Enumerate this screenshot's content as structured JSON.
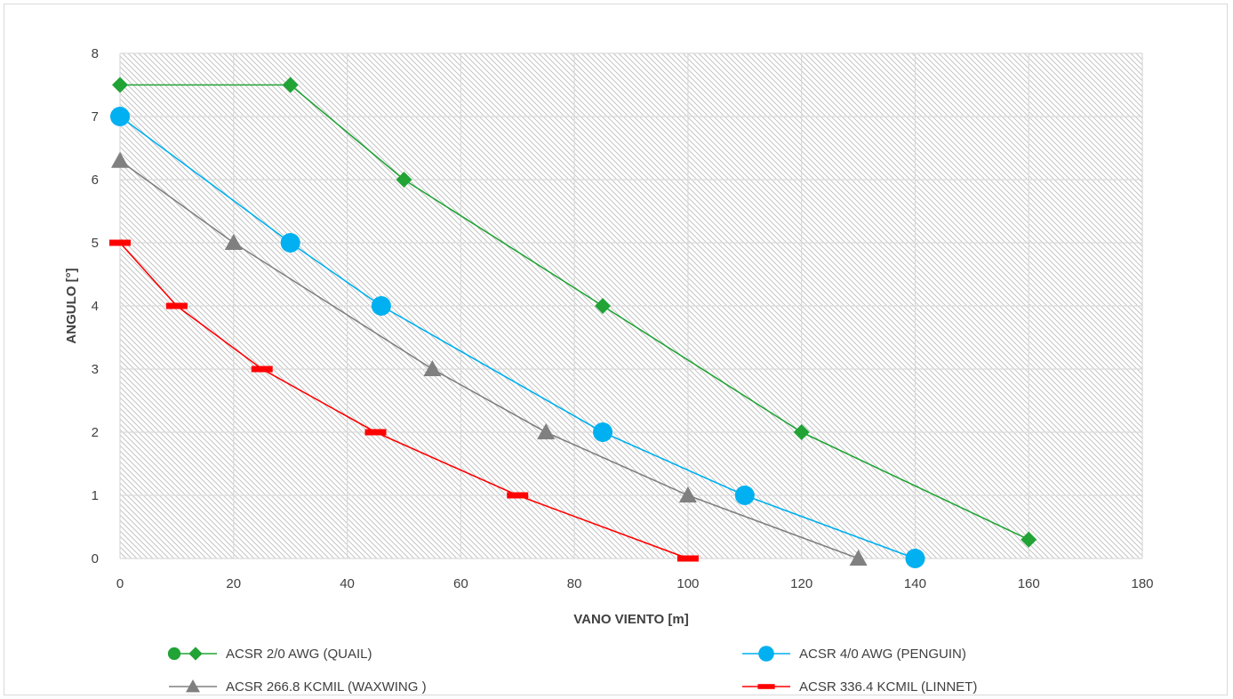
{
  "chart_data": {
    "type": "line",
    "title": "",
    "xlabel": "VANO VIENTO [m]",
    "ylabel": "ANGULO [°]",
    "xlim": [
      0,
      180
    ],
    "ylim": [
      0,
      8
    ],
    "xticks": [
      0,
      20,
      40,
      60,
      80,
      100,
      120,
      140,
      160,
      180
    ],
    "yticks": [
      0,
      1,
      2,
      3,
      4,
      5,
      6,
      7,
      8
    ],
    "grid": true,
    "legend_position": "bottom",
    "series": [
      {
        "name": "ACSR 2/0 AWG (QUAIL)",
        "color": "#21a336",
        "marker": "diamond",
        "points": [
          [
            0,
            7.5
          ],
          [
            30,
            7.5
          ],
          [
            50,
            6
          ],
          [
            85,
            4
          ],
          [
            120,
            2
          ],
          [
            160,
            0.3
          ]
        ]
      },
      {
        "name": "ACSR 4/0 AWG (PENGUIN)",
        "color": "#00b0f0",
        "marker": "circle",
        "points": [
          [
            0,
            7
          ],
          [
            30,
            5
          ],
          [
            46,
            4
          ],
          [
            85,
            2
          ],
          [
            110,
            1
          ],
          [
            140,
            0
          ]
        ]
      },
      {
        "name": "ACSR 266.8 KCMIL (WAXWING )",
        "color": "#808080",
        "marker": "triangle",
        "points": [
          [
            0,
            6.3
          ],
          [
            20,
            5
          ],
          [
            55,
            3
          ],
          [
            75,
            2
          ],
          [
            100,
            1
          ],
          [
            130,
            0
          ]
        ]
      },
      {
        "name": "ACSR 336.4 KCMIL (LINNET)",
        "color": "#ff0000",
        "marker": "dash",
        "points": [
          [
            0,
            5
          ],
          [
            10,
            4
          ],
          [
            25,
            3
          ],
          [
            45,
            2
          ],
          [
            70,
            1
          ],
          [
            100,
            0
          ]
        ]
      }
    ]
  }
}
